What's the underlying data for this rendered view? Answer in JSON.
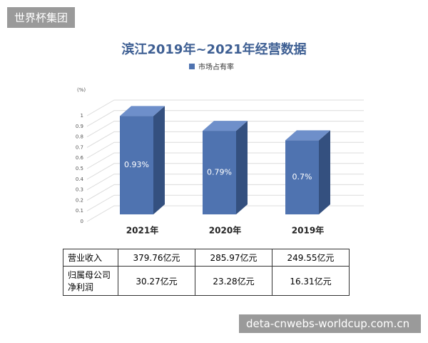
{
  "watermark": "世界杯集团",
  "chart_data": {
    "type": "bar",
    "title": "滨江2019年~2021年经营数据",
    "ylabel": "(%)",
    "categories": [
      "2021年",
      "2020年",
      "2019年"
    ],
    "series": [
      {
        "name": "市场占有率",
        "color": "#4f73b0",
        "values": [
          0.93,
          0.79,
          0.7
        ],
        "value_labels": [
          "0.93%",
          "0.79%",
          "0.7%"
        ]
      }
    ],
    "ylim": [
      0,
      1
    ],
    "yticks": [
      0,
      0.1,
      0.2,
      0.3,
      0.4,
      0.5,
      0.6,
      0.7,
      0.8,
      0.9,
      1
    ],
    "grid": true
  },
  "table": {
    "rows": [
      [
        "营业收入",
        "379.76亿元",
        "285.97亿元",
        "249.55亿元"
      ],
      [
        "归属母公司净利润",
        "30.27亿元",
        "23.28亿元",
        "16.31亿元"
      ]
    ]
  },
  "footer": "deta-cnwebs-worldcup.com.cn"
}
